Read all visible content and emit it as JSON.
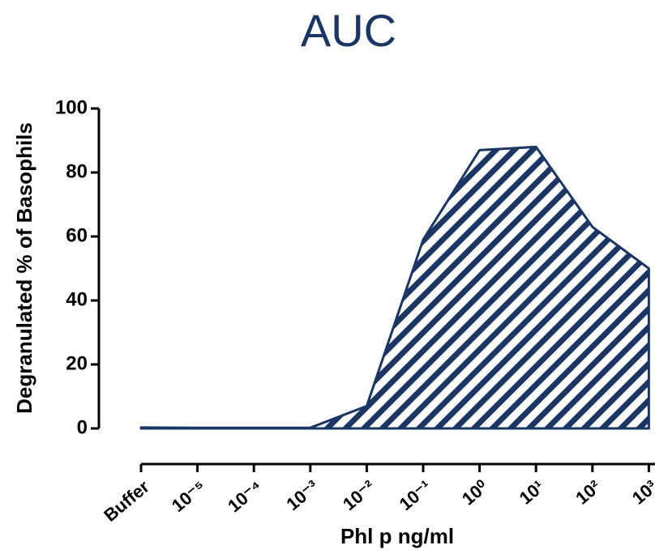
{
  "chart_data": {
    "type": "area",
    "title": "AUC",
    "x_label": "Phl p ng/ml",
    "y_label": "Degranulated % of Basophils",
    "categories": [
      "Buffer",
      "10⁻⁵",
      "10⁻⁴",
      "10⁻³",
      "10⁻²",
      "10⁻¹",
      "10⁰",
      "10¹",
      "10²",
      "10³"
    ],
    "values": [
      0.3,
      0.2,
      0.2,
      0.2,
      7,
      59,
      87,
      88,
      63,
      50
    ],
    "color": "#1b3564",
    "ylim": [
      0,
      100
    ],
    "yticks": [
      0,
      20,
      40,
      60,
      80,
      100
    ]
  }
}
